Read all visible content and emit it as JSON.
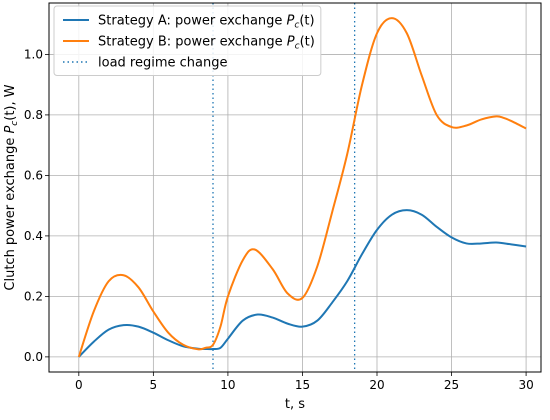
{
  "chart_data": {
    "type": "line",
    "xlabel": "t, s",
    "ylabel_prefix": "Clutch power exchange ",
    "ylabel_sym": "P",
    "ylabel_sub": "c",
    "ylabel_suffix": "(t), W",
    "xlim": [
      -2,
      31
    ],
    "ylim": [
      -0.05,
      1.17
    ],
    "x_ticks": [
      0,
      5,
      10,
      15,
      20,
      25,
      30
    ],
    "y_ticks": [
      0.0,
      0.2,
      0.4,
      0.6,
      0.8,
      1.0
    ],
    "x_tick_labels": [
      "0",
      "5",
      "10",
      "15",
      "20",
      "25",
      "30"
    ],
    "y_tick_labels": [
      "0.0",
      "0.2",
      "0.4",
      "0.6",
      "0.8",
      "1.0"
    ],
    "grid": true,
    "legend_placement": "top-left",
    "series": [
      {
        "label_prefix": "Strategy A: power exchange ",
        "color": "#1f77b4",
        "style": "solid",
        "x": [
          0,
          1,
          2,
          3,
          4,
          5,
          6,
          7,
          8,
          8.5,
          9,
          9.5,
          10,
          11,
          12,
          13,
          14,
          15,
          16,
          17,
          18,
          19,
          20,
          21,
          22,
          23,
          24,
          25,
          26,
          27,
          28,
          29,
          30
        ],
        "y": [
          0.0,
          0.05,
          0.09,
          0.105,
          0.1,
          0.08,
          0.055,
          0.035,
          0.027,
          0.026,
          0.026,
          0.03,
          0.06,
          0.12,
          0.14,
          0.13,
          0.11,
          0.1,
          0.12,
          0.18,
          0.25,
          0.34,
          0.42,
          0.47,
          0.485,
          0.47,
          0.43,
          0.395,
          0.375,
          0.375,
          0.378,
          0.372,
          0.365
        ]
      },
      {
        "label_prefix": "Strategy B: power exchange ",
        "color": "#ff7f0e",
        "style": "solid",
        "x": [
          0,
          1,
          2,
          3,
          4,
          5,
          6,
          7,
          8,
          8.5,
          9,
          9.5,
          10,
          11,
          11.8,
          13,
          14,
          15,
          16,
          17,
          18,
          19,
          20,
          21,
          22,
          23,
          24,
          25,
          26,
          27,
          28,
          28.5,
          29,
          30
        ],
        "y": [
          0.0,
          0.15,
          0.25,
          0.27,
          0.23,
          0.15,
          0.08,
          0.04,
          0.025,
          0.03,
          0.04,
          0.1,
          0.2,
          0.32,
          0.355,
          0.29,
          0.21,
          0.195,
          0.3,
          0.48,
          0.67,
          0.9,
          1.07,
          1.12,
          1.07,
          0.93,
          0.8,
          0.76,
          0.765,
          0.785,
          0.795,
          0.79,
          0.78,
          0.755
        ]
      }
    ],
    "vlines": [
      {
        "x": 9.0,
        "color": "#1f77b4",
        "style": "dotted"
      },
      {
        "x": 18.5,
        "color": "#1f77b4",
        "style": "dotted"
      }
    ],
    "legend": [
      {
        "label_prefix": "Strategy A: power exchange ",
        "color": "#1f77b4",
        "style": "solid",
        "has_math": true
      },
      {
        "label_prefix": "Strategy B: power exchange ",
        "color": "#ff7f0e",
        "style": "solid",
        "has_math": true
      },
      {
        "label_prefix": "load regime change",
        "color": "#1f77b4",
        "style": "dotted",
        "has_math": false
      }
    ],
    "math_sym": "P",
    "math_sub": "c",
    "math_suffix": "(t)"
  }
}
